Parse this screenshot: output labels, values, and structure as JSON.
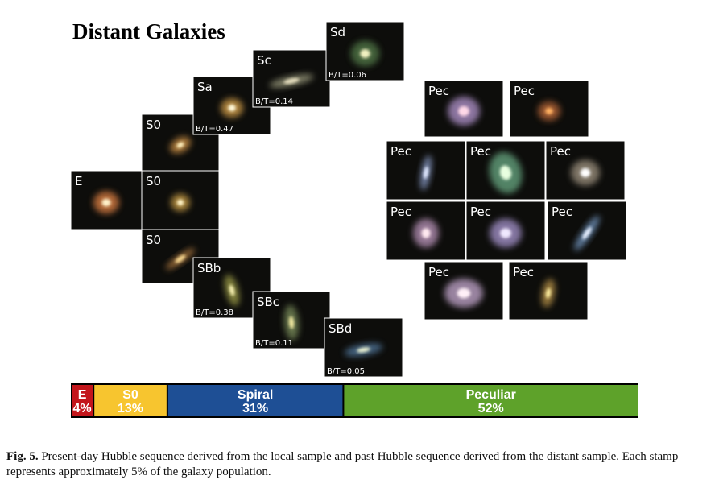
{
  "title": "Distant Galaxies",
  "stamps": [
    {
      "type": "E"
    },
    {
      "type": "S0"
    },
    {
      "type": "S0"
    },
    {
      "type": "S0"
    },
    {
      "type": "Sa",
      "bt": "B/T=0.47"
    },
    {
      "type": "Sc",
      "bt": "B/T=0.14"
    },
    {
      "type": "Sd",
      "bt": "B/T=0.06"
    },
    {
      "type": "SBb",
      "bt": "B/T=0.38"
    },
    {
      "type": "SBc",
      "bt": "B/T=0.11"
    },
    {
      "type": "SBd",
      "bt": "B/T=0.05"
    },
    {
      "type": "Pec"
    },
    {
      "type": "Pec"
    },
    {
      "type": "Pec"
    },
    {
      "type": "Pec"
    },
    {
      "type": "Pec"
    },
    {
      "type": "Pec"
    },
    {
      "type": "Pec"
    },
    {
      "type": "Pec"
    },
    {
      "type": "Pec"
    },
    {
      "type": "Pec"
    }
  ],
  "bar": {
    "segments": [
      {
        "name": "E",
        "value": 4,
        "label": "4%",
        "color": "#c3161c"
      },
      {
        "name": "S0",
        "value": 13,
        "label": "13%",
        "color": "#f7c52f"
      },
      {
        "name": "Spiral",
        "value": 31,
        "label": "31%",
        "color": "#1e4f95"
      },
      {
        "name": "Peculiar",
        "value": 52,
        "label": "52%",
        "color": "#5ea22a"
      }
    ]
  },
  "caption": {
    "label": "Fig. 5.",
    "text": "Present-day Hubble sequence derived from the local sample and past Hubble sequence derived from the distant sample. Each stamp represents approximately 5% of the galaxy population."
  }
}
